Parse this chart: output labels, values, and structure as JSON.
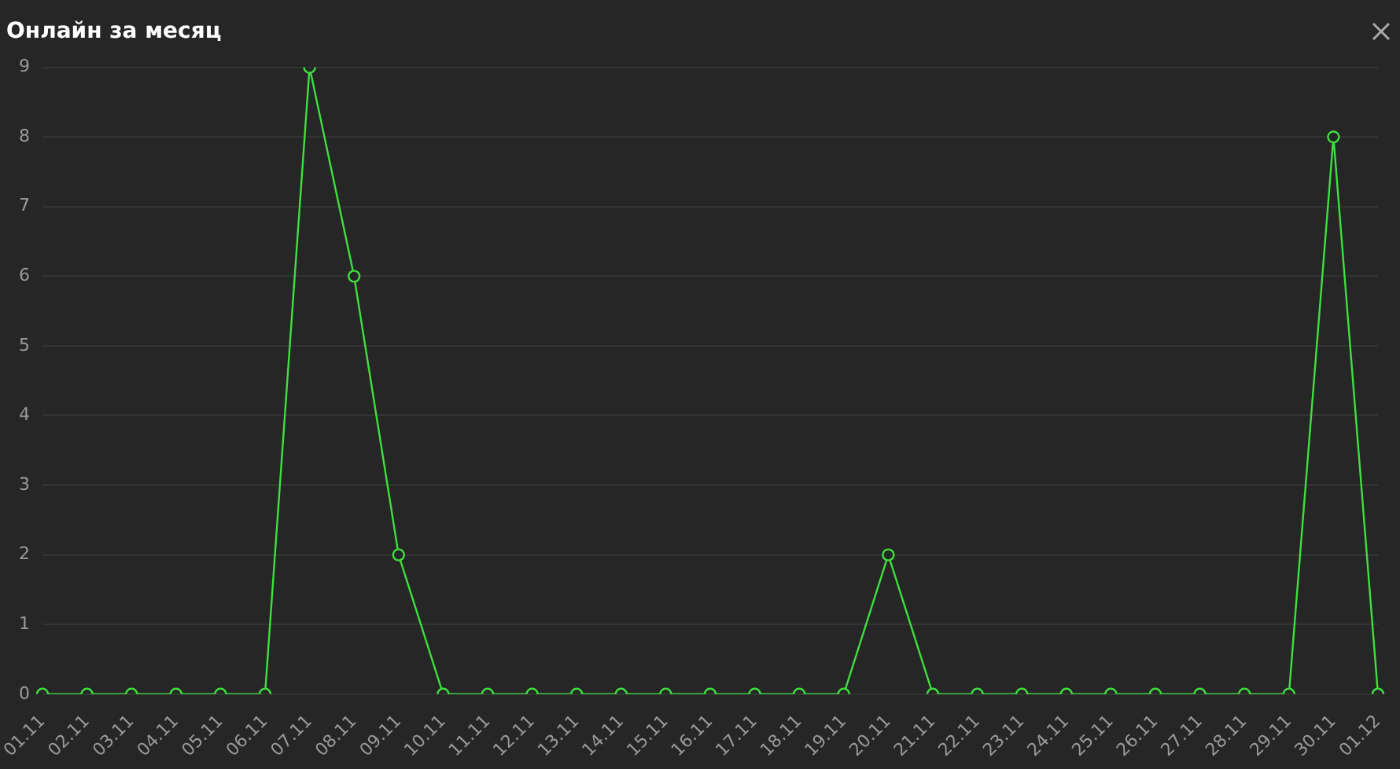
{
  "chart_data": {
    "type": "line",
    "title": "Онлайн за месяц",
    "categories": [
      "01.11",
      "02.11",
      "03.11",
      "04.11",
      "05.11",
      "06.11",
      "07.11",
      "08.11",
      "09.11",
      "10.11",
      "11.11",
      "12.11",
      "13.11",
      "14.11",
      "15.11",
      "16.11",
      "17.11",
      "18.11",
      "19.11",
      "20.11",
      "21.11",
      "22.11",
      "23.11",
      "24.11",
      "25.11",
      "26.11",
      "27.11",
      "28.11",
      "29.11",
      "30.11",
      "01.12"
    ],
    "series": [
      {
        "color": "#3ee03e",
        "values": [
          0,
          0,
          0,
          0,
          0,
          0,
          9,
          6,
          2,
          0,
          0,
          0,
          0,
          0,
          0,
          0,
          0,
          0,
          0,
          2,
          0,
          0,
          0,
          0,
          0,
          0,
          0,
          0,
          0,
          8,
          0
        ]
      }
    ],
    "ylim": [
      0,
      9
    ],
    "yticks": [
      0,
      1,
      2,
      3,
      4,
      5,
      6,
      7,
      8,
      9
    ],
    "grid": "y",
    "legend": false,
    "marker": "circle",
    "line_style": "solid"
  }
}
